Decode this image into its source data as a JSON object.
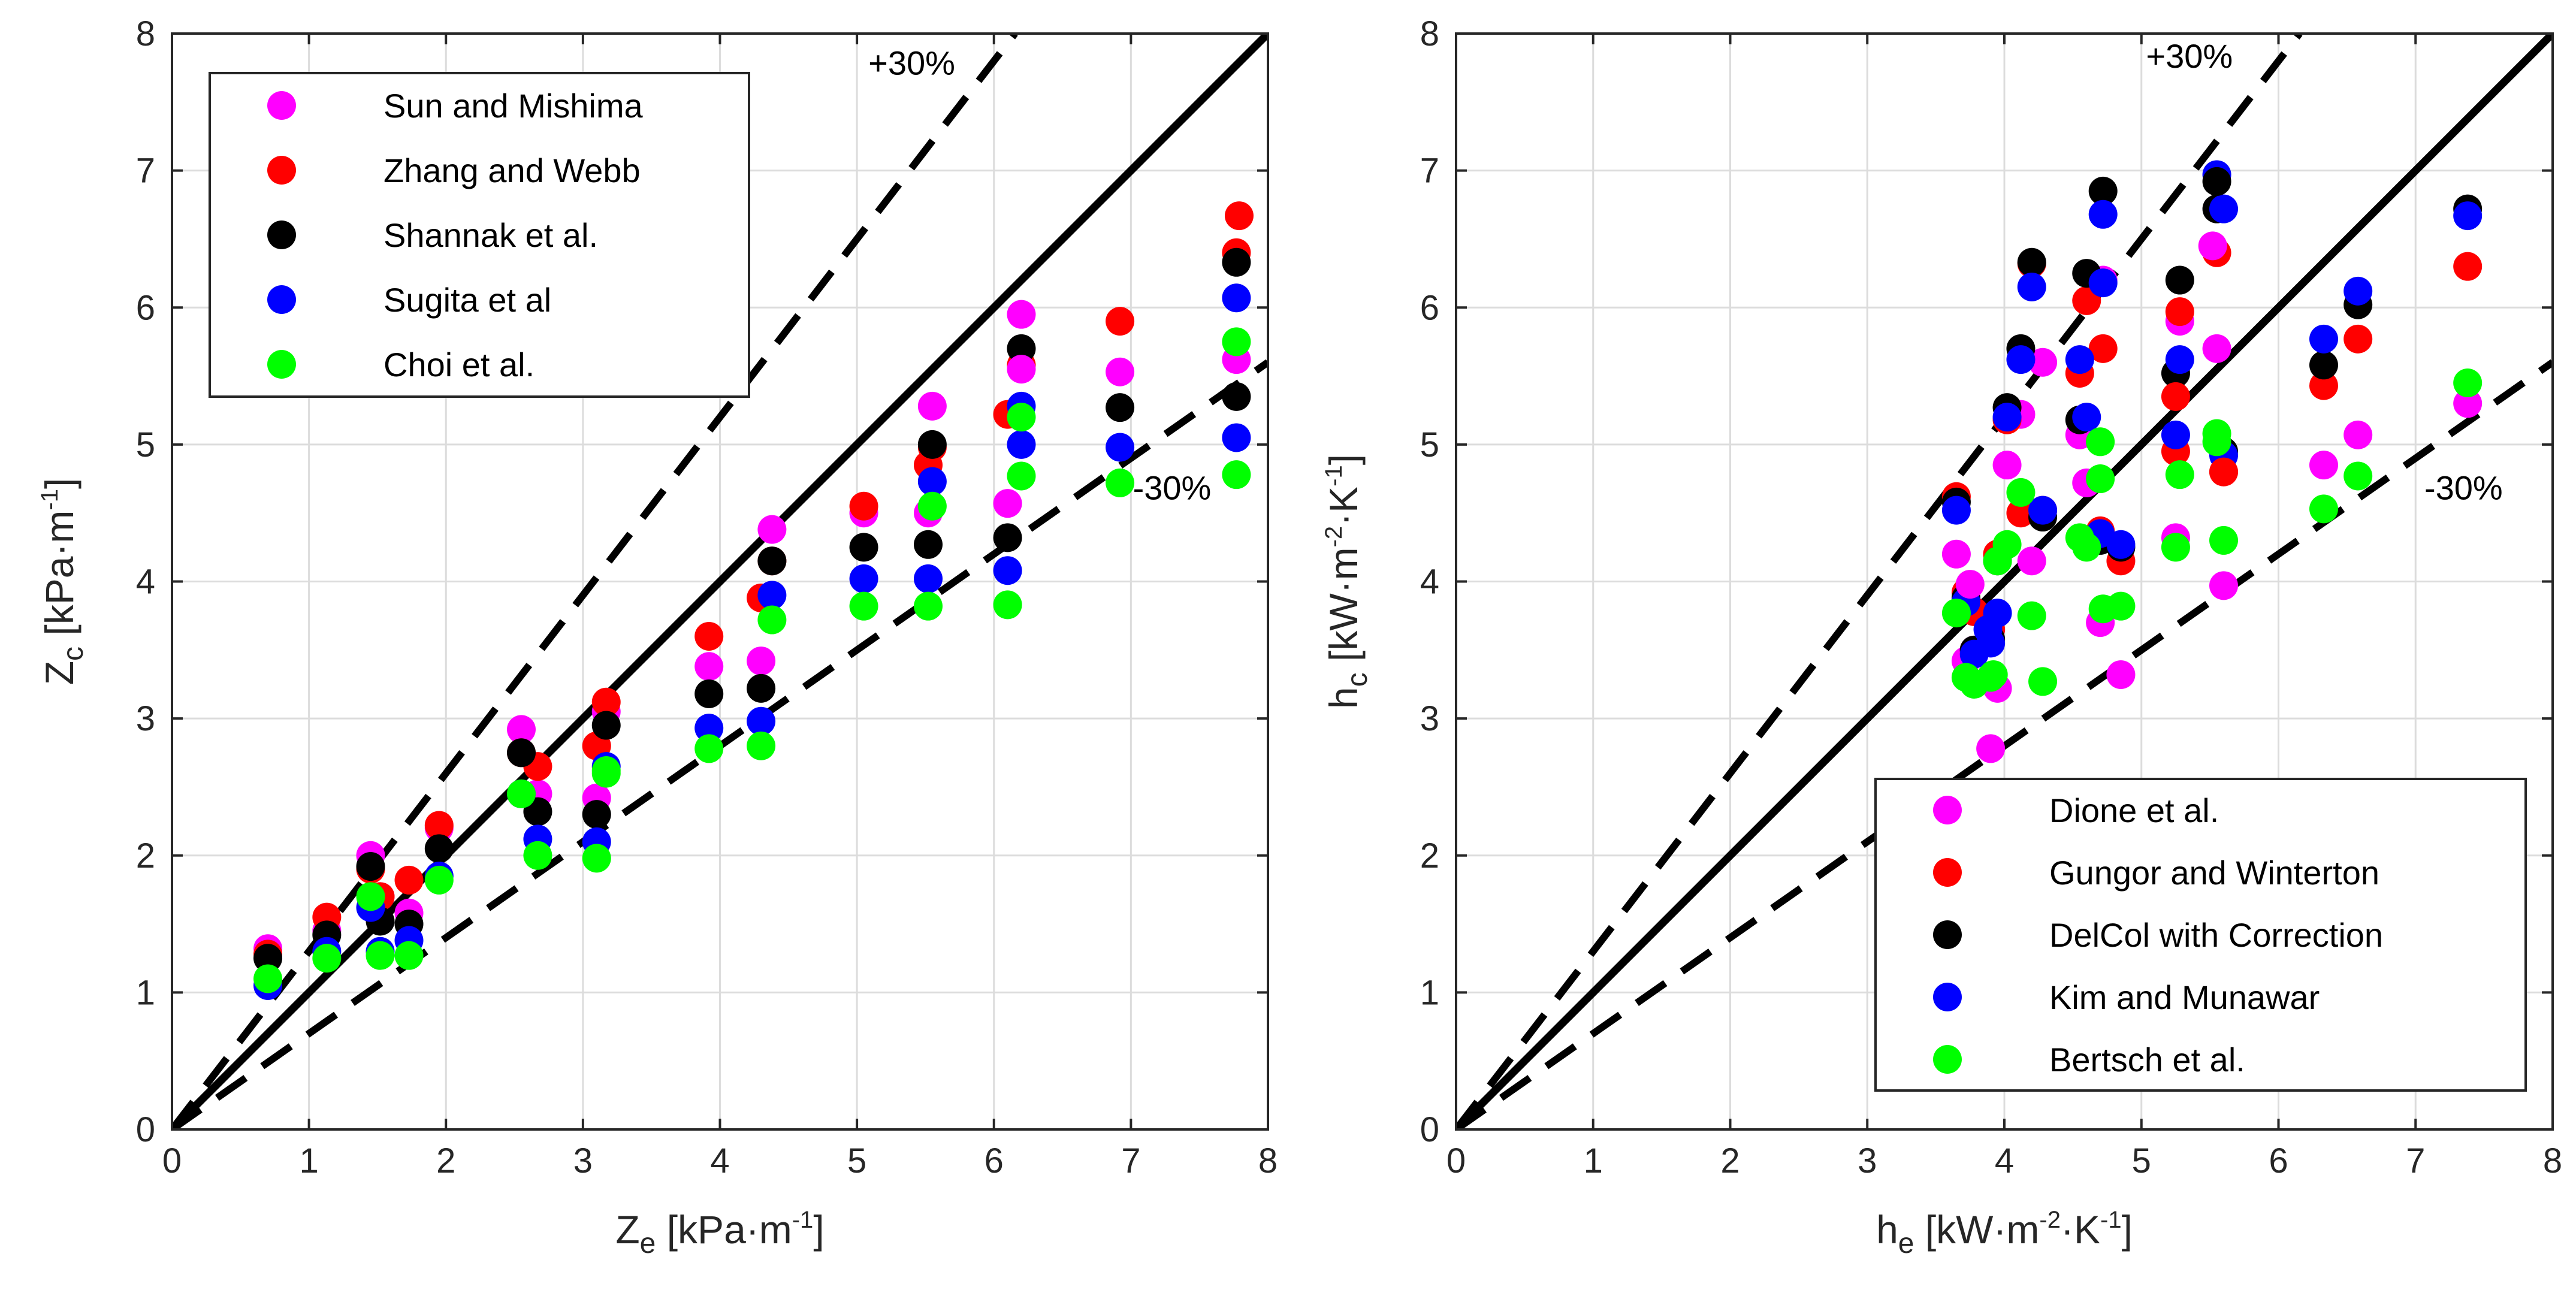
{
  "colors": {
    "magenta": "#ff00ff",
    "red": "#ff0000",
    "black": "#000000",
    "blue": "#0000ff",
    "green": "#00ff00",
    "grid": "#dcdcdc",
    "axis": "#262626"
  },
  "chart_data": [
    {
      "type": "scatter",
      "title": "",
      "xlabel": {
        "base": "Z",
        "sub": "e",
        "unit_pre": " [kPa·m",
        "sup": "-1",
        "unit_post": "]"
      },
      "ylabel": {
        "base": "Z",
        "sub": "c",
        "unit_pre": " [kPa·m",
        "sup": "-1",
        "unit_post": "]"
      },
      "xlim": [
        0,
        8
      ],
      "ylim": [
        0,
        8
      ],
      "xticks": [
        "0",
        "1",
        "2",
        "3",
        "4",
        "5",
        "6",
        "7",
        "8"
      ],
      "yticks": [
        "0",
        "1",
        "2",
        "3",
        "4",
        "5",
        "6",
        "7",
        "8"
      ],
      "grid": true,
      "legend_position": "top-left",
      "reference_lines": [
        {
          "slope": 1.0,
          "style": "solid"
        },
        {
          "slope": 1.3,
          "style": "dashed"
        },
        {
          "slope": 0.7,
          "style": "dashed"
        }
      ],
      "annotations": [
        {
          "text": "+30%",
          "x": 5.4,
          "y": 7.7
        },
        {
          "text": "-30%",
          "x": 7.3,
          "y": 4.6
        }
      ],
      "x": [
        0.7,
        1.13,
        1.45,
        1.52,
        1.73,
        1.95,
        2.55,
        2.67,
        3.1,
        3.17,
        3.92,
        4.3,
        4.38,
        5.05,
        5.52,
        5.55,
        6.1,
        6.2,
        6.92,
        7.77
      ],
      "series": [
        {
          "name": "Sun and Mishima",
          "color": "magenta",
          "values": [
            1.32,
            1.45,
            2.0,
            1.7,
            1.58,
            2.2,
            2.92,
            2.45,
            2.42,
            3.05,
            3.38,
            3.42,
            4.38,
            4.5,
            4.5,
            5.28,
            4.57,
            5.95,
            5.53,
            5.62
          ]
        },
        {
          "name": "Zhang and Webb",
          "color": "red",
          "values": [
            1.28,
            1.55,
            1.9,
            1.7,
            1.82,
            2.22,
            2.75,
            2.65,
            2.8,
            3.12,
            3.6,
            3.88,
            4.15,
            4.55,
            4.85,
            4.98,
            5.22,
            5.58,
            5.9,
            6.4
          ]
        },
        {
          "name": "Shannak et al.",
          "color": "black",
          "values": [
            1.25,
            1.42,
            1.92,
            1.52,
            1.5,
            2.05,
            2.75,
            2.32,
            2.3,
            2.95,
            3.18,
            3.22,
            4.15,
            4.25,
            4.27,
            5.0,
            4.32,
            5.7,
            5.27,
            6.33
          ]
        },
        {
          "name": "Sugita et al",
          "color": "blue",
          "values": [
            1.05,
            1.3,
            1.62,
            1.3,
            1.38,
            1.85,
            2.45,
            2.12,
            2.1,
            2.65,
            2.93,
            2.98,
            3.9,
            4.02,
            4.02,
            4.73,
            4.08,
            5.0,
            4.98,
            5.05
          ]
        },
        {
          "name": "Choi et al.",
          "color": "green",
          "values": [
            1.1,
            1.25,
            1.7,
            1.27,
            1.27,
            1.82,
            2.45,
            2.0,
            1.98,
            2.6,
            2.78,
            2.8,
            3.72,
            3.82,
            3.82,
            4.55,
            3.83,
            4.77,
            4.72,
            4.78
          ]
        }
      ],
      "extra_points": [
        {
          "series": "Zhang and Webb",
          "x": 7.79,
          "y": 6.67
        },
        {
          "series": "Shannak et al.",
          "x": 7.77,
          "y": 5.35
        },
        {
          "series": "Sugita et al",
          "x": 7.77,
          "y": 6.07
        },
        {
          "series": "Choi et al.",
          "x": 7.77,
          "y": 5.75
        },
        {
          "series": "Sun and Mishima",
          "x": 6.2,
          "y": 5.55
        },
        {
          "series": "Sugita et al",
          "x": 6.2,
          "y": 5.28
        },
        {
          "series": "Choi et al.",
          "x": 6.2,
          "y": 5.2
        },
        {
          "series": "Choi et al.",
          "x": 3.17,
          "y": 2.62
        }
      ]
    },
    {
      "type": "scatter",
      "title": "",
      "xlabel": {
        "base": "h",
        "sub": "e",
        "unit_pre": " [kW·m",
        "sup": "-2",
        "unit_mid": "·K",
        "sup2": "-1",
        "unit_post": "]"
      },
      "ylabel": {
        "base": "h",
        "sub": "c",
        "unit_pre": " [kW·m",
        "sup": "-2",
        "unit_mid": "·K",
        "sup2": "-1",
        "unit_post": "]"
      },
      "xlim": [
        0,
        8
      ],
      "ylim": [
        0,
        8
      ],
      "xticks": [
        "0",
        "1",
        "2",
        "3",
        "4",
        "5",
        "6",
        "7",
        "8"
      ],
      "yticks": [
        "0",
        "1",
        "2",
        "3",
        "4",
        "5",
        "6",
        "7",
        "8"
      ],
      "grid": true,
      "legend_position": "bottom-right",
      "reference_lines": [
        {
          "slope": 1.0,
          "style": "solid"
        },
        {
          "slope": 1.3,
          "style": "dashed"
        },
        {
          "slope": 0.7,
          "style": "dashed"
        }
      ],
      "annotations": [
        {
          "text": "+30%",
          "x": 5.35,
          "y": 7.75
        },
        {
          "text": "-30%",
          "x": 7.35,
          "y": 4.6
        }
      ],
      "x": [
        3.65,
        3.72,
        3.78,
        3.9,
        3.95,
        4.02,
        4.12,
        4.2,
        4.28,
        4.55,
        4.6,
        4.7,
        4.72,
        4.85,
        5.25,
        5.28,
        5.55,
        5.6,
        6.33,
        6.58,
        7.38
      ],
      "series": [
        {
          "name": "Dione et al.",
          "color": "magenta",
          "values": [
            4.2,
            3.42,
            3.5,
            2.78,
            3.22,
            4.85,
            5.22,
            4.15,
            5.6,
            5.07,
            4.72,
            3.7,
            6.2,
            3.32,
            4.32,
            5.9,
            5.7,
            3.97,
            4.85,
            5.07,
            5.3
          ]
        },
        {
          "name": "Gungor and Winterton",
          "color": "red",
          "values": [
            4.62,
            3.92,
            3.78,
            3.65,
            4.2,
            5.18,
            4.5,
            6.32,
            4.52,
            5.52,
            6.05,
            4.37,
            5.7,
            4.15,
            4.95,
            5.97,
            6.4,
            4.8,
            5.43,
            5.77,
            6.3
          ]
        },
        {
          "name": "DelCol with Correction",
          "color": "black",
          "values": [
            4.58,
            3.88,
            3.5,
            3.58,
            4.15,
            5.27,
            5.7,
            6.33,
            4.47,
            5.18,
            6.25,
            4.3,
            6.85,
            4.25,
            5.52,
            6.2,
            6.72,
            4.95,
            5.58,
            6.02,
            6.72
          ]
        },
        {
          "name": "Kim and Munawar",
          "color": "blue",
          "values": [
            4.52,
            3.85,
            3.47,
            3.55,
            3.77,
            5.2,
            5.62,
            6.15,
            4.52,
            5.62,
            5.2,
            4.35,
            6.18,
            4.27,
            5.07,
            5.62,
            6.97,
            4.92,
            5.77,
            6.12,
            6.67
          ]
        },
        {
          "name": "Bertsch et al.",
          "color": "green",
          "values": [
            3.77,
            3.3,
            3.25,
            3.3,
            4.15,
            4.27,
            4.65,
            3.75,
            3.27,
            4.32,
            4.25,
            4.75,
            3.8,
            3.82,
            4.25,
            4.78,
            5.02,
            4.3,
            4.53,
            4.77,
            5.45
          ]
        }
      ],
      "extra_points": [
        {
          "series": "Kim and Munawar",
          "x": 3.88,
          "y": 3.65
        },
        {
          "series": "Bertsch et al.",
          "x": 3.92,
          "y": 3.32
        },
        {
          "series": "Bertsch et al.",
          "x": 4.7,
          "y": 5.02
        },
        {
          "series": "Bertsch et al.",
          "x": 5.55,
          "y": 5.08
        },
        {
          "series": "Kim and Munawar",
          "x": 5.6,
          "y": 6.72
        },
        {
          "series": "DelCol with Correction",
          "x": 5.55,
          "y": 6.92
        },
        {
          "series": "Dione et al.",
          "x": 5.52,
          "y": 6.45
        },
        {
          "series": "Kim and Munawar",
          "x": 4.72,
          "y": 6.68
        },
        {
          "series": "Gungor and Winterton",
          "x": 5.25,
          "y": 5.35
        },
        {
          "series": "Dione et al.",
          "x": 3.75,
          "y": 3.98
        },
        {
          "series": "Gungor and Winterton",
          "x": 5.6,
          "y": 4.8
        }
      ]
    }
  ]
}
